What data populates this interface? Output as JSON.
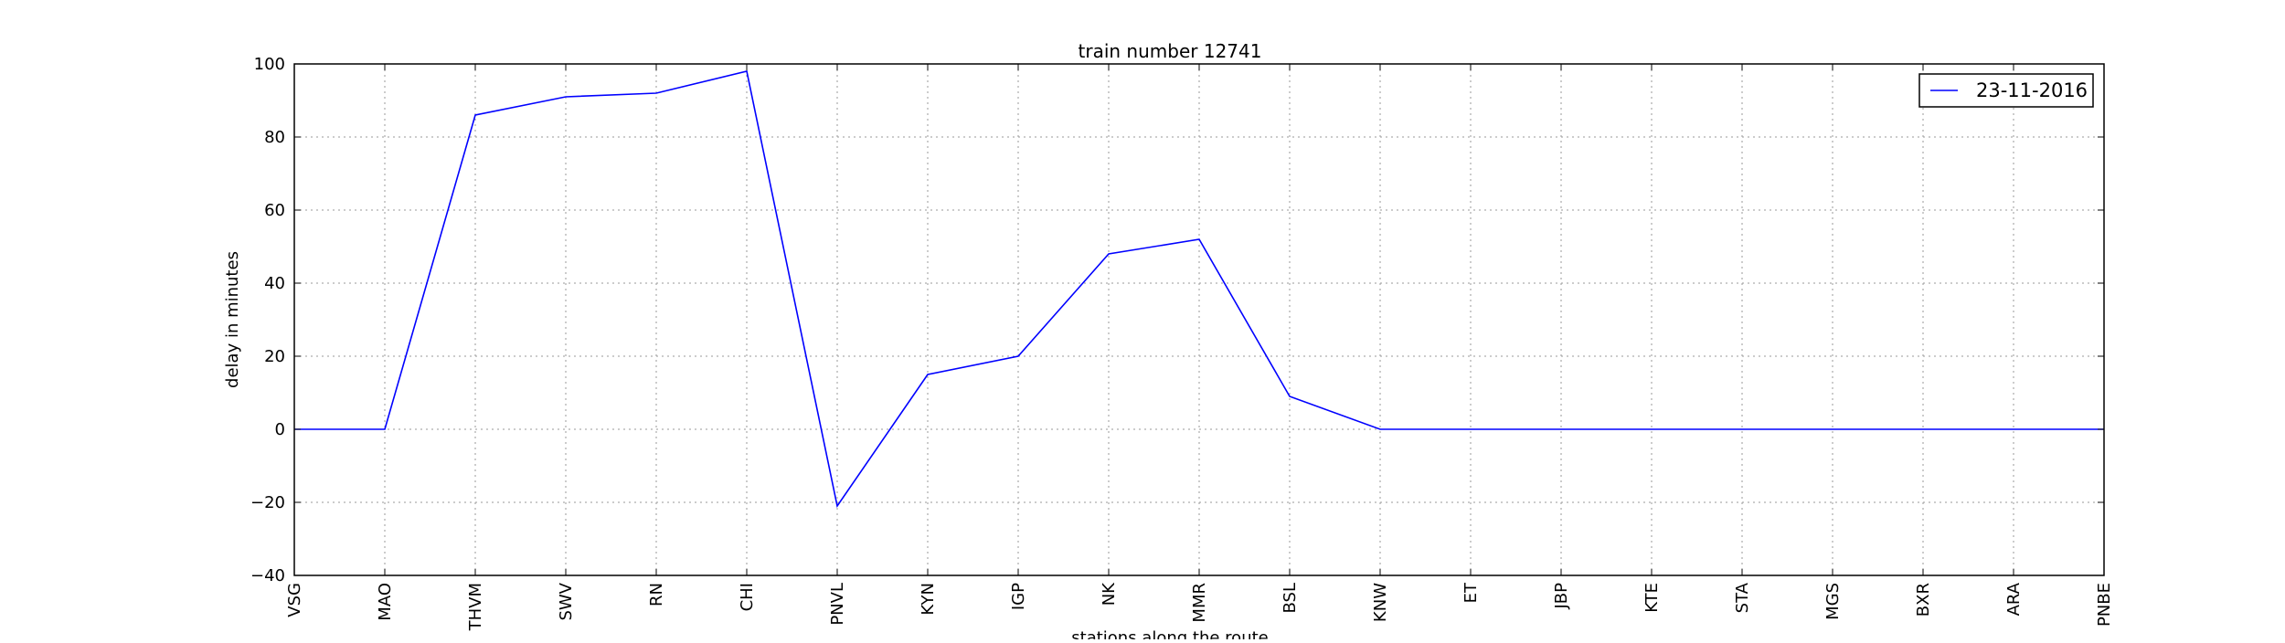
{
  "chart_data": {
    "type": "line",
    "title": "train number 12741",
    "xlabel": "stations along the route",
    "ylabel": "delay in minutes",
    "categories": [
      "VSG",
      "MAO",
      "THVM",
      "SWV",
      "RN",
      "CHI",
      "PNVL",
      "KYN",
      "IGP",
      "NK",
      "MMR",
      "BSL",
      "KNW",
      "ET",
      "JBP",
      "KTE",
      "STA",
      "MGS",
      "BXR",
      "ARA",
      "PNBE"
    ],
    "series": [
      {
        "name": "23-11-2016",
        "color": "#0000ff",
        "values": [
          0,
          0,
          86,
          91,
          92,
          98,
          -21,
          15,
          20,
          48,
          52,
          9,
          0,
          0,
          0,
          0,
          0,
          0,
          0,
          0,
          0
        ]
      }
    ],
    "ylim": [
      -40,
      100
    ],
    "yticks": [
      -40,
      -20,
      0,
      20,
      40,
      60,
      80,
      100
    ],
    "grid": true,
    "legend": "top-right"
  }
}
